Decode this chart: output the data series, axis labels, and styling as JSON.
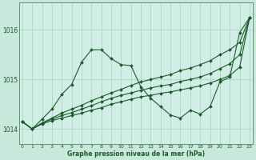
{
  "title": "Graphe pression niveau de la mer (hPa)",
  "background_color": "#c8e8dc",
  "plot_bg_color": "#d0eee5",
  "grid_color": "#a8cfc0",
  "line_color": "#1a5c28",
  "xlim": [
    -0.3,
    23.3
  ],
  "ylim": [
    1013.7,
    1016.55
  ],
  "yticks": [
    1014,
    1015,
    1016
  ],
  "xticks": [
    0,
    1,
    2,
    3,
    4,
    5,
    6,
    7,
    8,
    9,
    10,
    11,
    12,
    13,
    14,
    15,
    16,
    17,
    18,
    19,
    20,
    21,
    22,
    23
  ],
  "series": [
    [
      1014.15,
      1014.0,
      1014.2,
      1014.4,
      1014.7,
      1014.9,
      1015.35,
      1015.6,
      1015.6,
      1015.42,
      1015.3,
      1015.28,
      1014.85,
      1014.62,
      1014.45,
      1014.28,
      1014.22,
      1014.38,
      1014.3,
      1014.45,
      1014.95,
      1015.05,
      1015.95,
      1016.25
    ],
    [
      1014.15,
      1014.0,
      1014.12,
      1014.22,
      1014.32,
      1014.4,
      1014.48,
      1014.57,
      1014.65,
      1014.73,
      1014.8,
      1014.88,
      1014.95,
      1015.0,
      1015.05,
      1015.1,
      1015.18,
      1015.23,
      1015.3,
      1015.38,
      1015.5,
      1015.6,
      1015.75,
      1016.25
    ],
    [
      1014.15,
      1014.0,
      1014.12,
      1014.2,
      1014.27,
      1014.33,
      1014.4,
      1014.47,
      1014.55,
      1014.62,
      1014.68,
      1014.73,
      1014.78,
      1014.83,
      1014.87,
      1014.9,
      1014.96,
      1015.0,
      1015.05,
      1015.12,
      1015.22,
      1015.32,
      1015.5,
      1016.25
    ],
    [
      1014.15,
      1014.0,
      1014.1,
      1014.17,
      1014.22,
      1014.27,
      1014.32,
      1014.38,
      1014.43,
      1014.5,
      1014.55,
      1014.6,
      1014.65,
      1014.68,
      1014.72,
      1014.75,
      1014.79,
      1014.83,
      1014.87,
      1014.93,
      1015.0,
      1015.08,
      1015.25,
      1016.25
    ]
  ]
}
